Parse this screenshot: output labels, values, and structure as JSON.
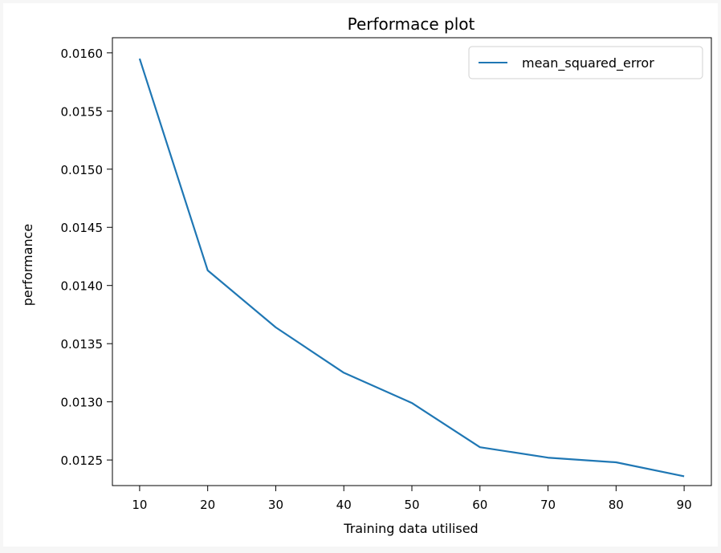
{
  "chart_data": {
    "type": "line",
    "title": "Performace plot",
    "xlabel": "Training data utilised",
    "ylabel": "performance",
    "x": [
      10,
      20,
      30,
      40,
      50,
      60,
      70,
      80,
      90
    ],
    "series": [
      {
        "name": "mean_squared_error",
        "color": "#1f77b4",
        "values": [
          0.01595,
          0.01413,
          0.01364,
          0.01325,
          0.01299,
          0.01261,
          0.01252,
          0.01248,
          0.01236
        ]
      }
    ],
    "xticks": [
      10,
      20,
      30,
      40,
      50,
      60,
      70,
      80,
      90
    ],
    "yticks": [
      0.0125,
      0.013,
      0.0135,
      0.014,
      0.0145,
      0.015,
      0.0155,
      0.016
    ],
    "ytick_labels": [
      "0.0125",
      "0.0130",
      "0.0135",
      "0.0140",
      "0.0145",
      "0.0150",
      "0.0155",
      "0.0160"
    ],
    "xlim": [
      6,
      94
    ],
    "ylim": [
      0.01228,
      0.01613
    ],
    "grid": false,
    "legend_position": "top-right"
  }
}
